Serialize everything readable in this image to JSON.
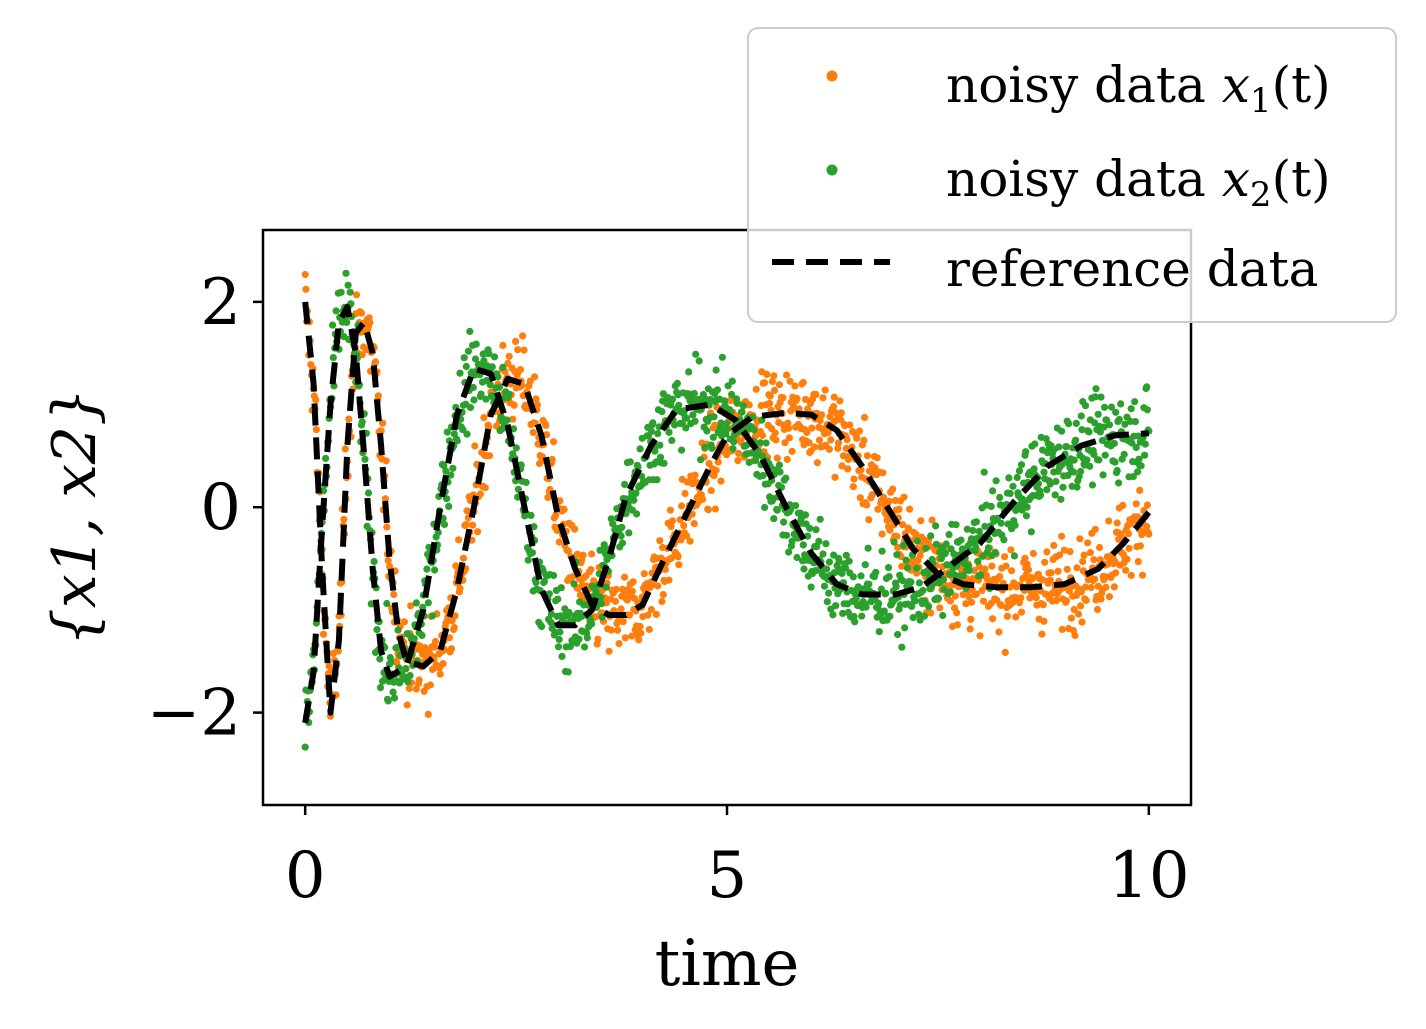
{
  "chart_data": {
    "type": "scatter",
    "title": "",
    "xlabel": "time",
    "ylabel": "{x1, x2}",
    "xlim": [
      -0.5,
      10.5
    ],
    "ylim": [
      -2.9,
      2.7
    ],
    "xticks": [
      0,
      5,
      10
    ],
    "xtick_labels": [
      "0",
      "5",
      "10"
    ],
    "yticks": [
      -2,
      0,
      2
    ],
    "ytick_labels": [
      "−2",
      "0",
      "2"
    ],
    "grid": false,
    "legend_position": "top-right, outside plot",
    "series": [
      {
        "name": "noisy data x1(t)",
        "color": "#ff7f0e",
        "style": "noisy-points",
        "points": [
          [
            0,
            2.0
          ],
          [
            0.1,
            1.2
          ],
          [
            0.2,
            -0.6
          ],
          [
            0.3,
            -2.0
          ],
          [
            0.4,
            -1.3
          ],
          [
            0.5,
            0.6
          ],
          [
            0.6,
            1.7
          ],
          [
            0.7,
            1.8
          ],
          [
            0.8,
            1.5
          ],
          [
            0.9,
            0.6
          ],
          [
            1.0,
            -0.5
          ],
          [
            1.1,
            -1.2
          ],
          [
            1.2,
            -1.5
          ],
          [
            1.4,
            -1.55
          ],
          [
            1.6,
            -1.4
          ],
          [
            1.8,
            -0.8
          ],
          [
            2.0,
            0.0
          ],
          [
            2.2,
            0.9
          ],
          [
            2.4,
            1.25
          ],
          [
            2.6,
            1.2
          ],
          [
            2.8,
            0.7
          ],
          [
            3.0,
            -0.1
          ],
          [
            3.2,
            -0.6
          ],
          [
            3.4,
            -0.95
          ],
          [
            3.6,
            -1.05
          ],
          [
            3.8,
            -1.05
          ],
          [
            4.0,
            -0.95
          ],
          [
            4.2,
            -0.6
          ],
          [
            4.5,
            -0.1
          ],
          [
            4.8,
            0.4
          ],
          [
            5.0,
            0.7
          ],
          [
            5.3,
            0.88
          ],
          [
            5.7,
            0.92
          ],
          [
            6.0,
            0.9
          ],
          [
            6.3,
            0.75
          ],
          [
            6.6,
            0.4
          ],
          [
            6.9,
            0.0
          ],
          [
            7.2,
            -0.4
          ],
          [
            7.5,
            -0.65
          ],
          [
            7.8,
            -0.75
          ],
          [
            8.2,
            -0.78
          ],
          [
            8.6,
            -0.78
          ],
          [
            9.0,
            -0.75
          ],
          [
            9.4,
            -0.6
          ],
          [
            9.7,
            -0.35
          ],
          [
            10.0,
            -0.05
          ]
        ],
        "noise": 0.2
      },
      {
        "name": "noisy data x2(t)",
        "color": "#2ca02c",
        "style": "noisy-points",
        "points": [
          [
            0,
            -2.1
          ],
          [
            0.1,
            -1.6
          ],
          [
            0.2,
            -0.2
          ],
          [
            0.3,
            1.0
          ],
          [
            0.4,
            1.8
          ],
          [
            0.5,
            1.95
          ],
          [
            0.6,
            1.5
          ],
          [
            0.7,
            0.5
          ],
          [
            0.8,
            -0.6
          ],
          [
            0.9,
            -1.4
          ],
          [
            1.0,
            -1.65
          ],
          [
            1.2,
            -1.55
          ],
          [
            1.4,
            -1.0
          ],
          [
            1.6,
            0.0
          ],
          [
            1.8,
            0.9
          ],
          [
            2.0,
            1.35
          ],
          [
            2.2,
            1.3
          ],
          [
            2.4,
            0.8
          ],
          [
            2.6,
            0.0
          ],
          [
            2.8,
            -0.8
          ],
          [
            3.0,
            -1.15
          ],
          [
            3.2,
            -1.15
          ],
          [
            3.4,
            -1.0
          ],
          [
            3.6,
            -0.5
          ],
          [
            3.8,
            0.1
          ],
          [
            4.1,
            0.6
          ],
          [
            4.4,
            0.95
          ],
          [
            4.8,
            1.0
          ],
          [
            5.1,
            0.85
          ],
          [
            5.4,
            0.5
          ],
          [
            5.7,
            0.0
          ],
          [
            6.0,
            -0.45
          ],
          [
            6.3,
            -0.75
          ],
          [
            6.6,
            -0.85
          ],
          [
            7.0,
            -0.85
          ],
          [
            7.3,
            -0.78
          ],
          [
            7.6,
            -0.6
          ],
          [
            8.0,
            -0.35
          ],
          [
            8.4,
            0.05
          ],
          [
            8.8,
            0.4
          ],
          [
            9.2,
            0.6
          ],
          [
            9.6,
            0.7
          ],
          [
            10.0,
            0.72
          ]
        ],
        "noise": 0.2
      },
      {
        "name": "reference data",
        "color": "#000000",
        "style": "dashed-line",
        "curves": [
          [
            [
              0,
              2.0
            ],
            [
              0.1,
              1.2
            ],
            [
              0.2,
              -0.6
            ],
            [
              0.3,
              -2.0
            ],
            [
              0.4,
              -1.3
            ],
            [
              0.5,
              0.6
            ],
            [
              0.6,
              1.7
            ],
            [
              0.7,
              1.8
            ],
            [
              0.8,
              1.5
            ],
            [
              0.9,
              0.6
            ],
            [
              1.0,
              -0.5
            ],
            [
              1.1,
              -1.2
            ],
            [
              1.2,
              -1.5
            ],
            [
              1.4,
              -1.55
            ],
            [
              1.6,
              -1.4
            ],
            [
              1.8,
              -0.8
            ],
            [
              2.0,
              0.0
            ],
            [
              2.2,
              0.9
            ],
            [
              2.4,
              1.25
            ],
            [
              2.6,
              1.2
            ],
            [
              2.8,
              0.7
            ],
            [
              3.0,
              -0.1
            ],
            [
              3.2,
              -0.6
            ],
            [
              3.4,
              -0.95
            ],
            [
              3.6,
              -1.05
            ],
            [
              3.8,
              -1.05
            ],
            [
              4.0,
              -0.95
            ],
            [
              4.2,
              -0.6
            ],
            [
              4.5,
              -0.1
            ],
            [
              4.8,
              0.4
            ],
            [
              5.0,
              0.7
            ],
            [
              5.3,
              0.88
            ],
            [
              5.7,
              0.92
            ],
            [
              6.0,
              0.9
            ],
            [
              6.3,
              0.75
            ],
            [
              6.6,
              0.4
            ],
            [
              6.9,
              0.0
            ],
            [
              7.2,
              -0.4
            ],
            [
              7.5,
              -0.65
            ],
            [
              7.8,
              -0.75
            ],
            [
              8.2,
              -0.78
            ],
            [
              8.6,
              -0.78
            ],
            [
              9.0,
              -0.75
            ],
            [
              9.4,
              -0.6
            ],
            [
              9.7,
              -0.35
            ],
            [
              10.0,
              -0.05
            ]
          ],
          [
            [
              0,
              -2.1
            ],
            [
              0.1,
              -1.6
            ],
            [
              0.2,
              -0.2
            ],
            [
              0.3,
              1.0
            ],
            [
              0.4,
              1.8
            ],
            [
              0.5,
              1.95
            ],
            [
              0.6,
              1.5
            ],
            [
              0.7,
              0.5
            ],
            [
              0.8,
              -0.6
            ],
            [
              0.9,
              -1.4
            ],
            [
              1.0,
              -1.65
            ],
            [
              1.2,
              -1.55
            ],
            [
              1.4,
              -1.0
            ],
            [
              1.6,
              0.0
            ],
            [
              1.8,
              0.9
            ],
            [
              2.0,
              1.35
            ],
            [
              2.2,
              1.3
            ],
            [
              2.4,
              0.8
            ],
            [
              2.6,
              0.0
            ],
            [
              2.8,
              -0.8
            ],
            [
              3.0,
              -1.15
            ],
            [
              3.2,
              -1.15
            ],
            [
              3.4,
              -1.0
            ],
            [
              3.6,
              -0.5
            ],
            [
              3.8,
              0.1
            ],
            [
              4.1,
              0.6
            ],
            [
              4.4,
              0.95
            ],
            [
              4.8,
              1.0
            ],
            [
              5.1,
              0.85
            ],
            [
              5.4,
              0.5
            ],
            [
              5.7,
              0.0
            ],
            [
              6.0,
              -0.45
            ],
            [
              6.3,
              -0.75
            ],
            [
              6.6,
              -0.85
            ],
            [
              7.0,
              -0.85
            ],
            [
              7.3,
              -0.78
            ],
            [
              7.6,
              -0.6
            ],
            [
              8.0,
              -0.35
            ],
            [
              8.4,
              0.05
            ],
            [
              8.8,
              0.4
            ],
            [
              9.2,
              0.6
            ],
            [
              9.6,
              0.7
            ],
            [
              10.0,
              0.72
            ]
          ]
        ]
      }
    ],
    "legend": [
      {
        "label": "noisy data x1(t)",
        "text": "noisy data ",
        "var": "x",
        "sub": "1",
        "tail": "(t)",
        "marker": "point",
        "color": "#ff7f0e"
      },
      {
        "label": "noisy data x2(t)",
        "text": "noisy data ",
        "var": "x",
        "sub": "2",
        "tail": "(t)",
        "marker": "point",
        "color": "#2ca02c"
      },
      {
        "label": "reference data",
        "text": "reference data",
        "marker": "dashed",
        "color": "#000000"
      }
    ]
  }
}
